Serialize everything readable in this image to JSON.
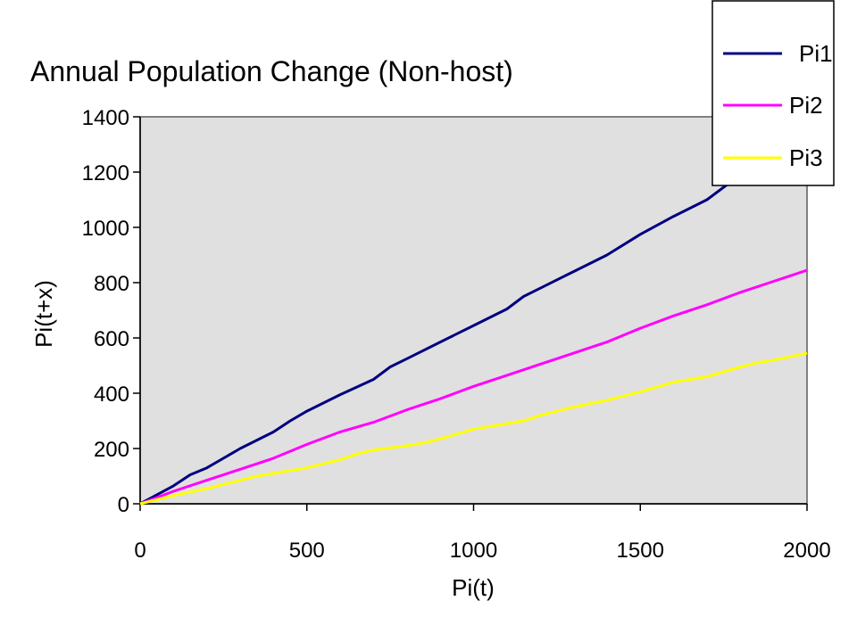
{
  "chart_data": {
    "type": "line",
    "title": "Annual Population Change (Non-host)",
    "xlabel": "Pi(t)",
    "ylabel": "Pi(t+x)",
    "xlim": [
      0,
      2000
    ],
    "ylim": [
      0,
      1400
    ],
    "x_ticks": [
      "0",
      "500",
      "1000",
      "1500",
      "2000"
    ],
    "y_ticks": [
      "0",
      "200",
      "400",
      "600",
      "800",
      "1000",
      "1200",
      "1400"
    ],
    "grid": false,
    "plot_background": "#e0e0e0",
    "legend_position": "top-right",
    "series": [
      {
        "name": "Pi1",
        "color": "#000080",
        "points": [
          [
            0,
            0
          ],
          [
            100,
            65
          ],
          [
            150,
            105
          ],
          [
            200,
            130
          ],
          [
            300,
            200
          ],
          [
            400,
            260
          ],
          [
            450,
            300
          ],
          [
            500,
            335
          ],
          [
            600,
            395
          ],
          [
            700,
            450
          ],
          [
            750,
            495
          ],
          [
            800,
            525
          ],
          [
            900,
            585
          ],
          [
            1000,
            645
          ],
          [
            1100,
            705
          ],
          [
            1150,
            750
          ],
          [
            1200,
            780
          ],
          [
            1300,
            840
          ],
          [
            1400,
            900
          ],
          [
            1500,
            975
          ],
          [
            1600,
            1040
          ],
          [
            1700,
            1100
          ],
          [
            1800,
            1190
          ]
        ]
      },
      {
        "name": "Pi2",
        "color": "#ff00ff",
        "points": [
          [
            0,
            0
          ],
          [
            100,
            45
          ],
          [
            200,
            85
          ],
          [
            300,
            125
          ],
          [
            400,
            165
          ],
          [
            450,
            190
          ],
          [
            500,
            215
          ],
          [
            600,
            260
          ],
          [
            700,
            295
          ],
          [
            800,
            340
          ],
          [
            900,
            380
          ],
          [
            1000,
            425
          ],
          [
            1100,
            465
          ],
          [
            1200,
            505
          ],
          [
            1300,
            545
          ],
          [
            1400,
            585
          ],
          [
            1500,
            635
          ],
          [
            1600,
            680
          ],
          [
            1700,
            720
          ],
          [
            1800,
            765
          ],
          [
            1900,
            805
          ],
          [
            2000,
            845
          ]
        ]
      },
      {
        "name": "Pi3",
        "color": "#ffff00",
        "points": [
          [
            0,
            0
          ],
          [
            100,
            30
          ],
          [
            200,
            55
          ],
          [
            300,
            85
          ],
          [
            350,
            100
          ],
          [
            400,
            110
          ],
          [
            500,
            130
          ],
          [
            600,
            160
          ],
          [
            650,
            180
          ],
          [
            700,
            195
          ],
          [
            800,
            210
          ],
          [
            850,
            220
          ],
          [
            900,
            235
          ],
          [
            1000,
            270
          ],
          [
            1100,
            290
          ],
          [
            1150,
            300
          ],
          [
            1200,
            320
          ],
          [
            1300,
            350
          ],
          [
            1400,
            375
          ],
          [
            1500,
            405
          ],
          [
            1600,
            440
          ],
          [
            1700,
            460
          ],
          [
            1800,
            495
          ],
          [
            1850,
            510
          ],
          [
            1900,
            520
          ],
          [
            2000,
            545
          ]
        ]
      }
    ]
  }
}
